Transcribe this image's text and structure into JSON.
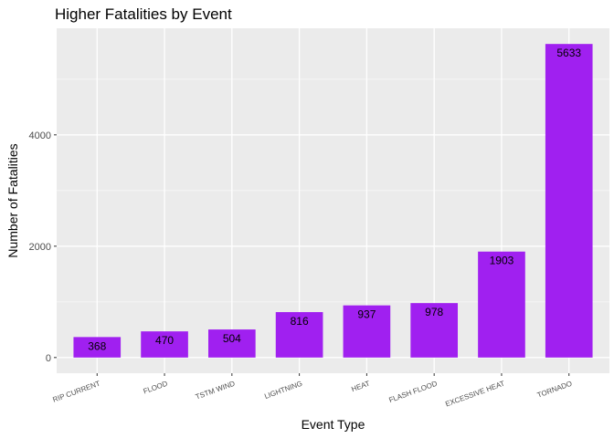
{
  "chart_data": {
    "type": "bar",
    "title": "Higher Fatalities by Event",
    "xlabel": "Event Type",
    "ylabel": "Number of Fatalities",
    "categories": [
      "RIP CURRENT",
      "FLOOD",
      "TSTM WIND",
      "LIGHTNING",
      "HEAT",
      "FLASH FLOOD",
      "EXCESSIVE HEAT",
      "TORNADO"
    ],
    "values": [
      368,
      470,
      504,
      816,
      937,
      978,
      1903,
      5633
    ],
    "data_labels": [
      "368",
      "470",
      "504",
      "816",
      "937",
      "978",
      "1903",
      "5633"
    ],
    "yticks": [
      0,
      2000,
      4000
    ],
    "ytick_labels": [
      "0",
      "2000",
      "4000"
    ],
    "ylim": [
      -281.65,
      5914.65
    ],
    "grid": true,
    "legend": "none",
    "colors": {
      "bar": "#A020F0",
      "panel": "#EBEBEB",
      "grid_major": "#FFFFFF",
      "text": "#000000",
      "tick_text": "#4D4D4D"
    }
  }
}
